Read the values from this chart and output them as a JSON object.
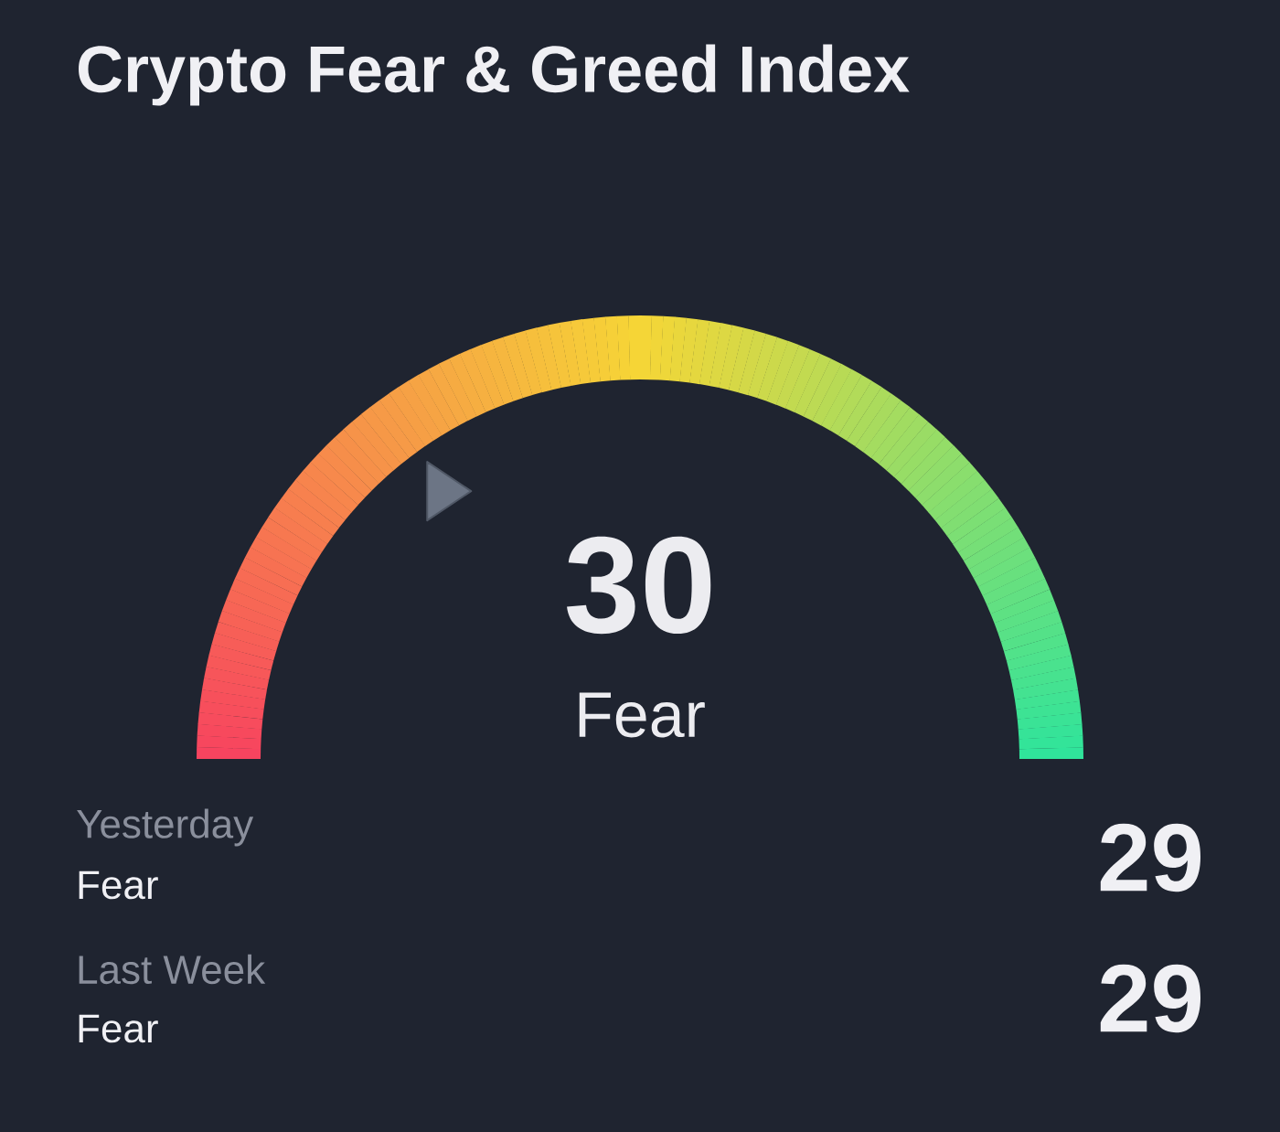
{
  "chart_data": {
    "type": "other",
    "title": "Crypto Fear & Greed Index",
    "categories": [
      null,
      "Yesterday",
      "Last Week"
    ],
    "values": [
      30,
      29,
      29
    ],
    "annotations": [
      "Fear",
      "Fear",
      "Fear"
    ],
    "data_labels": true,
    "colors": [
      "#f7435f",
      "#f6d636",
      "#2ee49c"
    ]
  }
}
